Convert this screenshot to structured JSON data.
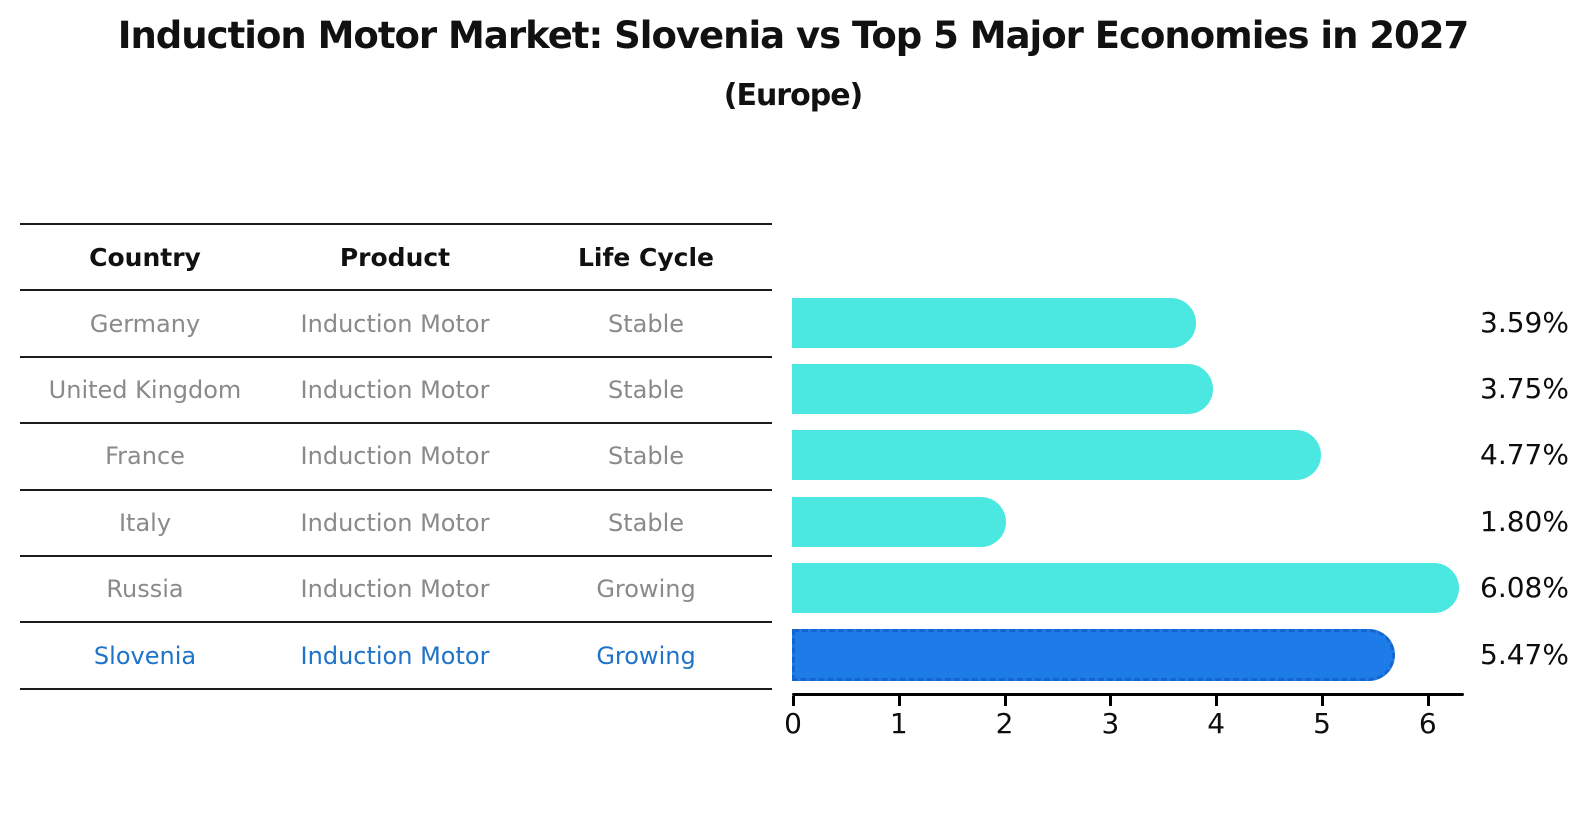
{
  "title": "Induction Motor Market: Slovenia vs Top 5 Major Economies in 2027",
  "subtitle": "(Europe)",
  "table": {
    "headers": [
      "Country",
      "Product",
      "Life Cycle"
    ],
    "rows": [
      {
        "country": "Germany",
        "product": "Induction Motor",
        "life_cycle": "Stable",
        "highlight": false
      },
      {
        "country": "United Kingdom",
        "product": "Induction Motor",
        "life_cycle": "Stable",
        "highlight": false
      },
      {
        "country": "France",
        "product": "Induction Motor",
        "life_cycle": "Stable",
        "highlight": false
      },
      {
        "country": "Italy",
        "product": "Induction Motor",
        "life_cycle": "Stable",
        "highlight": false
      },
      {
        "country": "Russia",
        "product": "Induction Motor",
        "life_cycle": "Growing",
        "highlight": false
      },
      {
        "country": "Slovenia",
        "product": "Induction Motor",
        "life_cycle": "Growing",
        "highlight": true
      }
    ]
  },
  "chart_data": {
    "type": "bar",
    "orientation": "horizontal",
    "title": "Induction Motor Market: Slovenia vs Top 5 Major Economies in 2027",
    "subtitle": "(Europe)",
    "categories": [
      "Germany",
      "United Kingdom",
      "France",
      "Italy",
      "Russia",
      "Slovenia"
    ],
    "values": [
      3.59,
      3.75,
      4.77,
      1.8,
      6.08,
      5.47
    ],
    "value_labels": [
      "3.59%",
      "3.75%",
      "4.77%",
      "1.80%",
      "6.08%",
      "5.47%"
    ],
    "x_ticks": [
      0,
      1,
      2,
      3,
      4,
      5,
      6
    ],
    "xlim": [
      0,
      6.35
    ],
    "highlight_index": 5,
    "grid": false,
    "legend": "none"
  },
  "colors": {
    "bar_default": "#4ae8e0",
    "bar_highlight": "#1e7ce8",
    "bar_highlight_border": "#1565d0",
    "table_text": "#8a8a8a",
    "table_header_text": "#111111",
    "highlight_text": "#1f73c8",
    "axis": "#000000",
    "background": "#ffffff"
  }
}
